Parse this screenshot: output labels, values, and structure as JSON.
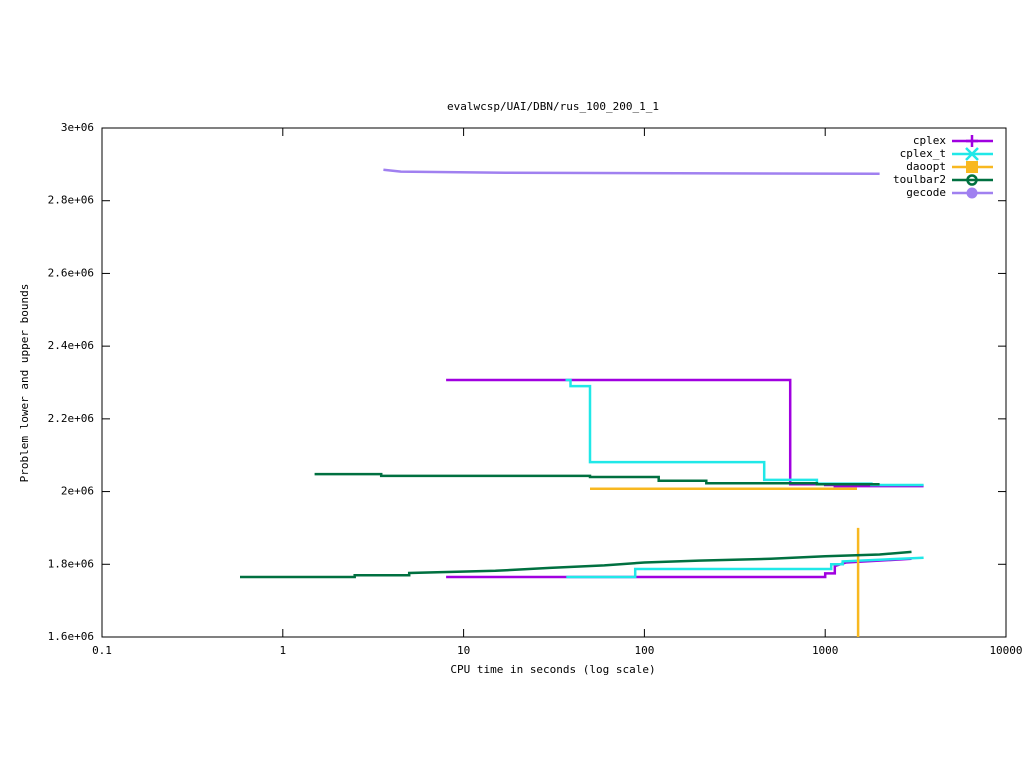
{
  "chart_data": {
    "type": "line",
    "title": "evalwcsp/UAI/DBN/rus_100_200_1_1",
    "xlabel": "CPU time in seconds (log scale)",
    "ylabel": "Problem lower and upper bounds",
    "xscale": "log",
    "xlim": [
      0.1,
      10000
    ],
    "xticks": [
      0.1,
      1,
      10,
      100,
      1000,
      10000
    ],
    "ylim": [
      1600000,
      3000000
    ],
    "yticks": [
      {
        "value": 1600000,
        "label": "1.6e+06"
      },
      {
        "value": 1800000,
        "label": "1.8e+06"
      },
      {
        "value": 2000000,
        "label": "2e+06"
      },
      {
        "value": 2200000,
        "label": "2.2e+06"
      },
      {
        "value": 2400000,
        "label": "2.4e+06"
      },
      {
        "value": 2600000,
        "label": "2.6e+06"
      },
      {
        "value": 2800000,
        "label": "2.8e+06"
      },
      {
        "value": 3000000,
        "label": "3e+06"
      }
    ],
    "legend": "top-right",
    "series": [
      {
        "name": "cplex",
        "color": "#a000e0",
        "marker": "plus",
        "x": [
          8,
          640,
          640,
          1000,
          1000,
          1130,
          1130,
          3500,
          null,
          8,
          1000,
          1000,
          1130,
          1130,
          1300,
          3000
        ],
        "values": [
          2307000,
          2307000,
          2020000,
          2020000,
          2018000,
          2018000,
          2015000,
          2015000,
          null,
          1765000,
          1765000,
          1775000,
          1775000,
          1795000,
          1805000,
          1815000
        ]
      },
      {
        "name": "cplex_t",
        "color": "#20e8e8",
        "marker": "cross",
        "x": [
          36.6,
          39,
          39,
          50,
          50,
          460,
          460,
          900,
          900,
          1800,
          1800,
          3500,
          null,
          37,
          89,
          89,
          1080,
          1080,
          1250,
          1250,
          3500
        ],
        "values": [
          2307000,
          2307000,
          2290000,
          2290000,
          2081000,
          2081000,
          2032000,
          2032000,
          2022000,
          2022000,
          2018000,
          2018000,
          null,
          1765000,
          1765000,
          1787000,
          1787000,
          1800000,
          1800000,
          1808000,
          1818000
        ]
      },
      {
        "name": "daoopt",
        "color": "#f8b820",
        "marker": "square",
        "x": [
          50,
          1500,
          null,
          1520,
          1520
        ],
        "values": [
          2008000,
          2008000,
          null,
          1900000,
          1600000
        ]
      },
      {
        "name": "toulbar2",
        "color": "#007040",
        "marker": "circle-open",
        "x": [
          1.5,
          3.5,
          3.5,
          50,
          50,
          120,
          120,
          220,
          220,
          900,
          900,
          2000,
          null,
          0.58,
          2.5,
          2.5,
          5,
          5,
          15,
          30,
          60,
          100,
          200,
          500,
          1000,
          2000,
          3000
        ],
        "values": [
          2048000,
          2048000,
          2043000,
          2043000,
          2040000,
          2040000,
          2030000,
          2030000,
          2023000,
          2023000,
          2020000,
          2020000,
          null,
          1765000,
          1765000,
          1770000,
          1770000,
          1776000,
          1782000,
          1790000,
          1797000,
          1805000,
          1810000,
          1815000,
          1822000,
          1827000,
          1834000
        ]
      },
      {
        "name": "gecode",
        "color": "#a080f0",
        "marker": "circle",
        "x": [
          3.6,
          4.5,
          17,
          2000
        ],
        "values": [
          2885000,
          2880000,
          2877000,
          2874000
        ]
      }
    ]
  }
}
